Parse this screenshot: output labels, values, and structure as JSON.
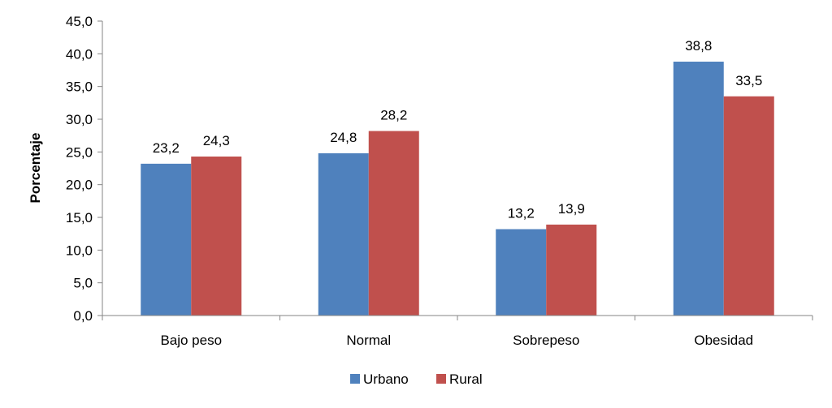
{
  "chart_data": {
    "type": "bar",
    "title": "",
    "xlabel": "",
    "ylabel": "Porcentaje",
    "categories": [
      "Bajo peso",
      "Normal",
      "Sobrepeso",
      "Obesidad"
    ],
    "series": [
      {
        "name": "Urbano",
        "values": [
          23.2,
          24.8,
          13.2,
          38.8
        ],
        "labels": [
          "23,2",
          "24,8",
          "13,2",
          "38,8"
        ],
        "color": "#4F81BD"
      },
      {
        "name": "Rural",
        "values": [
          24.3,
          28.2,
          13.9,
          33.5
        ],
        "labels": [
          "24,3",
          "28,2",
          "13,9",
          "33,5"
        ],
        "color": "#C0504D"
      }
    ],
    "ylim": [
      0,
      45
    ],
    "yticks": [
      0,
      5,
      10,
      15,
      20,
      25,
      30,
      35,
      40,
      45
    ],
    "ytick_labels": [
      "0,0",
      "5,0",
      "10,0",
      "15,0",
      "20,0",
      "25,0",
      "30,0",
      "35,0",
      "40,0",
      "45,0"
    ],
    "grid": false,
    "legend_position": "bottom"
  }
}
